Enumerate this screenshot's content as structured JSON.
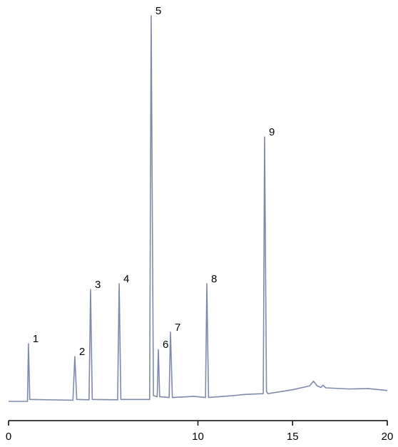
{
  "chart_data": {
    "type": "line",
    "color": "#7f8aab",
    "x": [
      0,
      1.0,
      1.05,
      1.12,
      3.4,
      3.5,
      3.6,
      4.25,
      4.33,
      4.42,
      5.76,
      5.84,
      5.93,
      7.45,
      7.53,
      7.65,
      7.85,
      7.91,
      7.98,
      8.48,
      8.55,
      8.65,
      9.8,
      10.4,
      10.47,
      10.56,
      11.9,
      12.5,
      13.45,
      13.52,
      13.62,
      13.7,
      15.0,
      15.9,
      16.1,
      16.3,
      16.5,
      16.6,
      16.75,
      18.0,
      19.0,
      20.0
    ],
    "values": [
      0,
      0,
      14.9,
      0.5,
      0.3,
      11.6,
      0.5,
      0.4,
      28.9,
      0.5,
      0.4,
      30.4,
      0.5,
      0.5,
      99.6,
      1.5,
      1.2,
      13.4,
      1.2,
      1.0,
      17.9,
      1.0,
      1.3,
      1.0,
      30.4,
      1.0,
      1.5,
      1.8,
      2.0,
      68.3,
      2.5,
      2.0,
      3.0,
      4.0,
      5.2,
      4.0,
      3.6,
      4.2,
      3.5,
      3.2,
      3.3,
      2.8
    ],
    "annotations": [
      {
        "text": "1",
        "x": 1.05,
        "y": 14.9
      },
      {
        "text": "2",
        "x": 3.5,
        "y": 11.6
      },
      {
        "text": "3",
        "x": 4.33,
        "y": 28.9
      },
      {
        "text": "4",
        "x": 5.84,
        "y": 30.4
      },
      {
        "text": "5",
        "x": 7.53,
        "y": 99.6
      },
      {
        "text": "6",
        "x": 7.91,
        "y": 13.4
      },
      {
        "text": "7",
        "x": 8.55,
        "y": 17.9
      },
      {
        "text": "8",
        "x": 10.47,
        "y": 30.4
      },
      {
        "text": "9",
        "x": 13.52,
        "y": 68.3
      }
    ],
    "xlim": [
      0,
      20
    ],
    "xticks": [
      0,
      10,
      15,
      20
    ],
    "ylim": [
      0,
      100
    ]
  }
}
